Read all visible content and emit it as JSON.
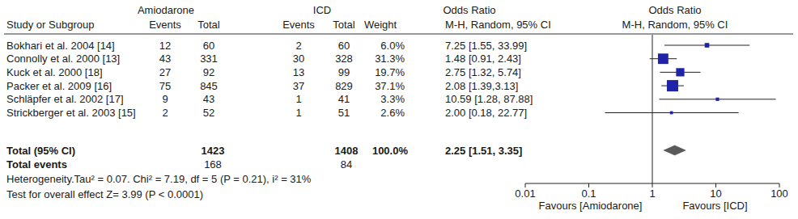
{
  "chart_data": {
    "type": "forest",
    "column_groups": [
      "Amiodarone",
      "ICD",
      "Odds Ratio",
      "Odds Ratio"
    ],
    "columns": [
      "Study or Subgroup",
      "Events",
      "Total",
      "Events",
      "Total",
      "Weight",
      "M-H, Random, 95% CI",
      "M-H, Random, 95% CI"
    ],
    "categories": [
      "Bokhari et al. 2004 [14]",
      "Connolly et al. 2000 [13]",
      "Kuck et al. 2000 [18]",
      "Packer et al. 2009 [16]",
      "Schläpfer et al. 2002 [17]",
      "Strickberger et al. 2003 [15]"
    ],
    "amiodarone_events": [
      12,
      43,
      27,
      75,
      9,
      2
    ],
    "amiodarone_totals": [
      60,
      331,
      92,
      845,
      43,
      52
    ],
    "icd_events": [
      2,
      30,
      13,
      37,
      1,
      1
    ],
    "icd_totals": [
      60,
      328,
      99,
      829,
      41,
      51
    ],
    "weights": [
      6.0,
      31.3,
      19.7,
      37.1,
      3.3,
      2.6
    ],
    "weight_labels": [
      "6.0%",
      "31.3%",
      "19.7%",
      "37.1%",
      "3.3%",
      "2.6%"
    ],
    "values": [
      7.25,
      1.48,
      2.75,
      2.08,
      10.59,
      2.0
    ],
    "ci_low": [
      1.55,
      0.91,
      1.32,
      1.39,
      1.28,
      0.18
    ],
    "ci_high": [
      33.99,
      2.43,
      5.74,
      3.13,
      87.88,
      22.77
    ],
    "value_labels": [
      "7.25 [1.55, 33.99]",
      "1.48 [0.91, 2.43]",
      "2.75 [1.32, 5.74]",
      "2.08 [1.39,3.13]",
      "10.59 [1.28, 87.88]",
      "2.00 [0.18, 22.77]"
    ],
    "total": {
      "label": "Total (95% CI)",
      "amiodarone_total": 1423,
      "icd_total": 1408,
      "weight": 100.0,
      "weight_label": "100.0%",
      "value": 2.25,
      "ci_low": 1.51,
      "ci_high": 3.35,
      "value_label": "2.25 [1.51, 3.35]"
    },
    "total_events": {
      "label": "Total events",
      "amiodarone": 168,
      "icd": 84
    },
    "heterogeneity": "Heterogeneity.Tau² = 0.07. Chi² = 7.19, df = 5 (P = 0.21), i² = 31%",
    "overall_effect": "Test for overall effect Z= 3.99 (P < 0.0001)",
    "log": "x",
    "xlim": [
      0.01,
      100
    ],
    "xticks": [
      0.01,
      0.1,
      1,
      10,
      100
    ],
    "x_labels": [
      "Favours [Amiodarone]",
      "Favours [ICD]"
    ],
    "color": "#1f23a8"
  }
}
